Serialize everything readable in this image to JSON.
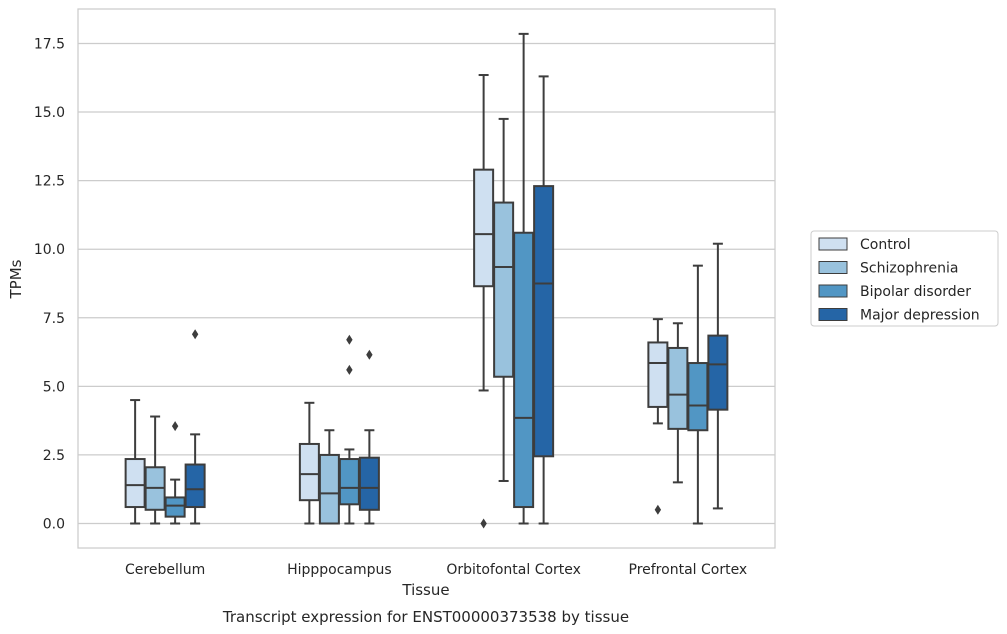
{
  "chart_data": {
    "type": "box",
    "xlabel": "Tissue",
    "ylabel": "TPMs",
    "caption": "Transcript expression for ENST00000373538 by tissue",
    "ylim": [
      -0.85,
      18.75
    ],
    "yticks": [
      0.0,
      2.5,
      5.0,
      7.5,
      10.0,
      12.5,
      15.0,
      17.5
    ],
    "ytick_labels": [
      "0.0",
      "2.5",
      "5.0",
      "7.5",
      "10.0",
      "12.5",
      "15.0",
      "17.5"
    ],
    "grid": "horizontal",
    "legend_position": "right",
    "categories": [
      "Cerebellum",
      "Hipppocampus",
      "Orbitofontal Cortex",
      "Prefrontal Cortex"
    ],
    "series": [
      {
        "name": "Control",
        "color": "#cfe0f1",
        "boxes": [
          {
            "whisker_low": 0.0,
            "q1": 0.6,
            "median": 1.4,
            "q3": 2.35,
            "whisker_high": 4.5,
            "outliers": []
          },
          {
            "whisker_low": 0.0,
            "q1": 0.85,
            "median": 1.8,
            "q3": 2.9,
            "whisker_high": 4.4,
            "outliers": []
          },
          {
            "whisker_low": 4.85,
            "q1": 8.65,
            "median": 10.55,
            "q3": 12.9,
            "whisker_high": 16.35,
            "outliers": [
              0.0
            ]
          },
          {
            "whisker_low": 3.65,
            "q1": 4.25,
            "median": 5.85,
            "q3": 6.6,
            "whisker_high": 7.45,
            "outliers": [
              0.5
            ]
          }
        ]
      },
      {
        "name": "Schizophrenia",
        "color": "#99c2dd",
        "boxes": [
          {
            "whisker_low": 0.0,
            "q1": 0.5,
            "median": 1.3,
            "q3": 2.05,
            "whisker_high": 3.9,
            "outliers": []
          },
          {
            "whisker_low": 0.0,
            "q1": 0.0,
            "median": 1.1,
            "q3": 2.5,
            "whisker_high": 3.4,
            "outliers": []
          },
          {
            "whisker_low": 1.55,
            "q1": 5.35,
            "median": 9.35,
            "q3": 11.7,
            "whisker_high": 14.75,
            "outliers": []
          },
          {
            "whisker_low": 1.5,
            "q1": 3.45,
            "median": 4.7,
            "q3": 6.4,
            "whisker_high": 7.3,
            "outliers": []
          }
        ]
      },
      {
        "name": "Bipolar disorder",
        "color": "#5196c4",
        "boxes": [
          {
            "whisker_low": 0.0,
            "q1": 0.25,
            "median": 0.65,
            "q3": 0.95,
            "whisker_high": 1.6,
            "outliers": [
              3.55
            ]
          },
          {
            "whisker_low": 0.0,
            "q1": 0.7,
            "median": 1.3,
            "q3": 2.35,
            "whisker_high": 2.7,
            "outliers": [
              5.6,
              6.7
            ]
          },
          {
            "whisker_low": 0.0,
            "q1": 0.6,
            "median": 3.85,
            "q3": 10.6,
            "whisker_high": 17.85,
            "outliers": []
          },
          {
            "whisker_low": 0.0,
            "q1": 3.4,
            "median": 4.3,
            "q3": 5.85,
            "whisker_high": 9.4,
            "outliers": []
          }
        ]
      },
      {
        "name": "Major depression",
        "color": "#2565a6",
        "boxes": [
          {
            "whisker_low": 0.0,
            "q1": 0.6,
            "median": 1.25,
            "q3": 2.15,
            "whisker_high": 3.25,
            "outliers": [
              6.9
            ]
          },
          {
            "whisker_low": 0.0,
            "q1": 0.5,
            "median": 1.3,
            "q3": 2.4,
            "whisker_high": 3.4,
            "outliers": [
              6.15
            ]
          },
          {
            "whisker_low": 0.0,
            "q1": 2.45,
            "median": 8.75,
            "q3": 12.3,
            "whisker_high": 16.3,
            "outliers": []
          },
          {
            "whisker_low": 0.55,
            "q1": 4.15,
            "median": 5.8,
            "q3": 6.85,
            "whisker_high": 10.2,
            "outliers": []
          }
        ]
      }
    ]
  }
}
